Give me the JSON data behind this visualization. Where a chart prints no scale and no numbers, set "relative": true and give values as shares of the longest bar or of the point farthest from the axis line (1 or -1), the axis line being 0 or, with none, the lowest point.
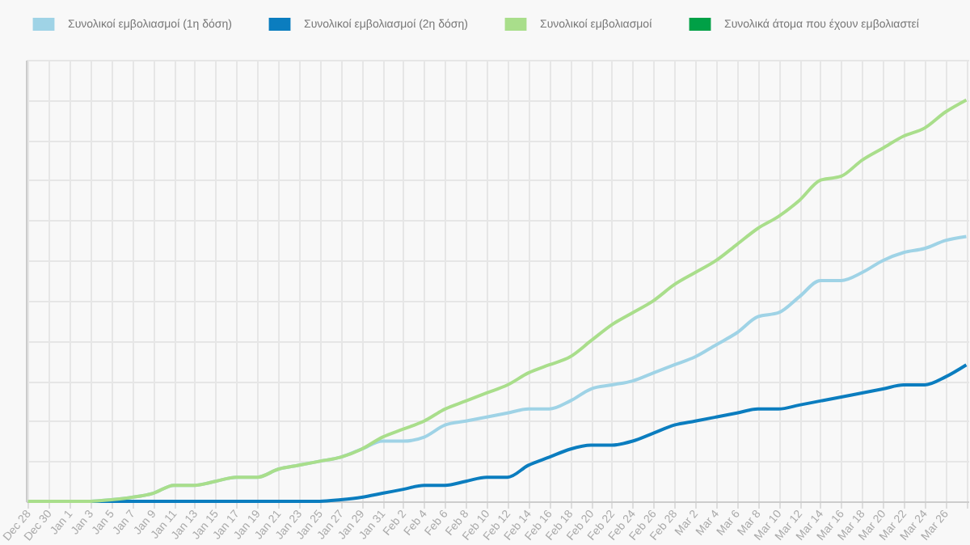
{
  "chart_data": {
    "type": "line",
    "relative": true,
    "grid": true,
    "legend": "top",
    "marker": "none",
    "line_style": "solid",
    "categories": [
      "Dec 28",
      "Dec 30",
      "Jan 1",
      "Jan 3",
      "Jan 5",
      "Jan 7",
      "Jan 9",
      "Jan 11",
      "Jan 13",
      "Jan 15",
      "Jan 17",
      "Jan 19",
      "Jan 21",
      "Jan 23",
      "Jan 25",
      "Jan 27",
      "Jan 29",
      "Jan 31",
      "Feb 2",
      "Feb 4",
      "Feb 6",
      "Feb 8",
      "Feb 10",
      "Feb 12",
      "Feb 14",
      "Feb 16",
      "Feb 18",
      "Feb 20",
      "Feb 22",
      "Feb 24",
      "Feb 26",
      "Feb 28",
      "Mar 2",
      "Mar 4",
      "Mar 6",
      "Mar 8",
      "Mar 10",
      "Mar 12",
      "Mar 14",
      "Mar 16",
      "Mar 18",
      "Mar 20",
      "Mar 22",
      "Mar 24",
      "Mar 26",
      null
    ],
    "series": [
      {
        "name": "Συνολικοί εμβολιασμοί (1η δόση)",
        "color": "#9fd3e6",
        "values": [
          null,
          null,
          0,
          0,
          0.004,
          0.01,
          0.02,
          0.04,
          0.04,
          0.05,
          0.06,
          0.06,
          0.08,
          0.09,
          0.1,
          0.11,
          0.13,
          0.15,
          0.15,
          0.16,
          0.19,
          0.2,
          0.21,
          0.22,
          0.23,
          0.23,
          0.25,
          0.28,
          0.29,
          0.3,
          0.32,
          0.34,
          0.36,
          0.39,
          0.42,
          0.46,
          0.47,
          0.51,
          0.55,
          0.55,
          0.57,
          0.6,
          0.62,
          0.63,
          0.65,
          0.66
        ]
      },
      {
        "name": "Συνολικοί εμβολιασμοί (2η δόση)",
        "color": "#0b7dbf",
        "values": [
          null,
          null,
          0,
          0,
          0,
          0,
          0,
          0,
          0,
          0,
          0,
          0,
          0,
          0,
          0,
          0.004,
          0.01,
          0.02,
          0.03,
          0.04,
          0.04,
          0.05,
          0.06,
          0.06,
          0.09,
          0.11,
          0.13,
          0.14,
          0.14,
          0.15,
          0.17,
          0.19,
          0.2,
          0.21,
          0.22,
          0.23,
          0.23,
          0.24,
          0.25,
          0.26,
          0.27,
          0.28,
          0.29,
          0.29,
          0.31,
          0.34
        ]
      },
      {
        "name": "Συνολικοί εμβολιασμοί",
        "color": "#a9de8b",
        "values": [
          0,
          0,
          0,
          0,
          0.004,
          0.01,
          0.02,
          0.04,
          0.04,
          0.05,
          0.06,
          0.06,
          0.08,
          0.09,
          0.1,
          0.11,
          0.13,
          0.16,
          0.18,
          0.2,
          0.23,
          0.25,
          0.27,
          0.29,
          0.32,
          0.34,
          0.36,
          0.4,
          0.44,
          0.47,
          0.5,
          0.54,
          0.57,
          0.6,
          0.64,
          0.68,
          0.71,
          0.75,
          0.8,
          0.81,
          0.85,
          0.88,
          0.91,
          0.93,
          0.97,
          1
        ]
      },
      {
        "name": "Συνολικά άτομα που έχουν εμβολιαστεί",
        "color": "#00a046",
        "values": [
          null,
          null,
          null,
          null,
          null,
          null,
          null,
          null,
          null,
          null,
          null,
          null,
          null,
          null,
          null,
          null,
          null,
          null,
          null,
          null,
          null,
          null,
          null,
          null,
          null,
          null,
          null,
          null,
          null,
          null,
          null,
          null,
          null,
          null,
          null,
          null,
          null,
          null,
          null,
          null,
          null,
          null,
          null,
          null,
          null,
          null
        ]
      }
    ]
  }
}
